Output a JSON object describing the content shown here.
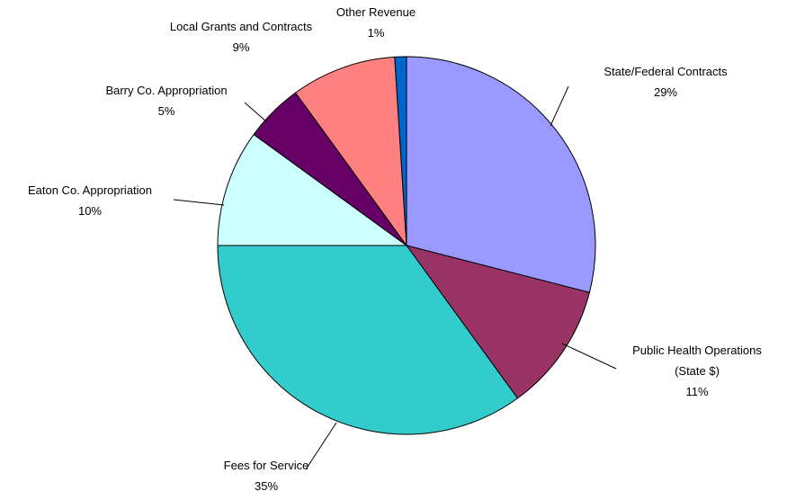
{
  "chart_data": {
    "type": "pie",
    "categories": [
      "State/Federal Contracts",
      "Public Health Operations (State $)",
      "Fees for Service",
      "Eaton Co. Appropriation",
      "Barry Co. Appropriation",
      "Local Grants and Contracts",
      "Other Revenue"
    ],
    "values": [
      29,
      11,
      35,
      10,
      5,
      9,
      1
    ],
    "value_labels": [
      "29%",
      "11%",
      "35%",
      "10%",
      "5%",
      "9%",
      "1%"
    ],
    "colors": [
      "#9999ff",
      "#993366",
      "#33cccc",
      "#ccffff",
      "#660066",
      "#ff8080",
      "#0066cc"
    ]
  }
}
